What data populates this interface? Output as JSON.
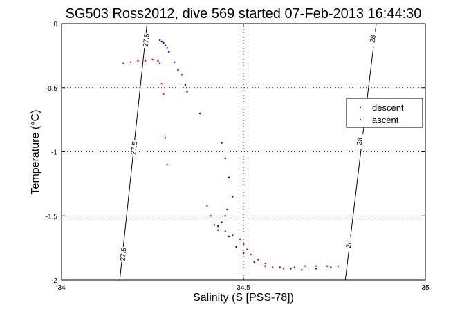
{
  "chart_data": {
    "type": "scatter",
    "title": "SG503 Ross2012, dive 569 started 07-Feb-2013 16:44:30",
    "xlabel": "Salinity (S [PSS-78])",
    "ylabel": "Temperature (°C)",
    "xlim": [
      34,
      35
    ],
    "ylim": [
      -2,
      0
    ],
    "xticks": [
      "34",
      "34.5",
      "35"
    ],
    "yticks": [
      "0",
      "-0.5",
      "-1",
      "-1.5",
      "-2"
    ],
    "grid": true,
    "legend_position": "right",
    "series": [
      {
        "name": "descent",
        "color": "#0000ff",
        "points": [
          [
            34.27,
            -0.13
          ],
          [
            34.275,
            -0.14
          ],
          [
            34.28,
            -0.15
          ],
          [
            34.285,
            -0.17
          ],
          [
            34.29,
            -0.19
          ],
          [
            34.295,
            -0.22
          ],
          [
            34.31,
            -0.3
          ],
          [
            34.32,
            -0.36
          ],
          [
            34.33,
            -0.4
          ],
          [
            34.34,
            -0.48
          ],
          [
            34.345,
            -0.53
          ],
          [
            34.38,
            -0.7
          ],
          [
            34.44,
            -0.93
          ],
          [
            34.45,
            -1.05
          ],
          [
            34.46,
            -1.2
          ],
          [
            34.47,
            -1.35
          ],
          [
            34.455,
            -1.45
          ],
          [
            34.45,
            -1.5
          ],
          [
            34.44,
            -1.55
          ],
          [
            34.43,
            -1.58
          ],
          [
            34.46,
            -1.66
          ],
          [
            34.48,
            -1.74
          ],
          [
            34.5,
            -1.79
          ],
          [
            34.53,
            -1.86
          ],
          [
            34.56,
            -1.89
          ],
          [
            34.6,
            -1.9
          ],
          [
            34.63,
            -1.91
          ],
          [
            34.66,
            -1.92
          ],
          [
            34.7,
            -1.91
          ],
          [
            34.74,
            -1.9
          ]
        ]
      },
      {
        "name": "ascent",
        "color": "#ff0000",
        "points": [
          [
            34.17,
            -0.31
          ],
          [
            34.19,
            -0.3
          ],
          [
            34.21,
            -0.29
          ],
          [
            34.23,
            -0.29
          ],
          [
            34.25,
            -0.28
          ],
          [
            34.265,
            -0.29
          ],
          [
            34.27,
            -0.31
          ],
          [
            34.275,
            -0.47
          ],
          [
            34.28,
            -0.55
          ],
          [
            34.285,
            -0.89
          ],
          [
            34.29,
            -1.1
          ],
          [
            34.4,
            -1.42
          ],
          [
            34.41,
            -1.5
          ],
          [
            34.42,
            -1.57
          ],
          [
            34.43,
            -1.61
          ],
          [
            34.45,
            -1.62
          ],
          [
            34.47,
            -1.65
          ],
          [
            34.49,
            -1.68
          ],
          [
            34.5,
            -1.72
          ],
          [
            34.51,
            -1.76
          ],
          [
            34.52,
            -1.8
          ],
          [
            34.54,
            -1.84
          ],
          [
            34.56,
            -1.87
          ],
          [
            34.58,
            -1.9
          ],
          [
            34.61,
            -1.91
          ],
          [
            34.64,
            -1.9
          ],
          [
            34.67,
            -1.89
          ],
          [
            34.7,
            -1.89
          ],
          [
            34.73,
            -1.89
          ],
          [
            34.76,
            -1.89
          ]
        ]
      }
    ],
    "isopycnals": [
      {
        "label": "27.5",
        "line": [
          [
            34.16,
            -2.0
          ],
          [
            34.235,
            0.0
          ]
        ],
        "label_points": [
          [
            34.17,
            -1.8
          ],
          [
            34.2,
            -0.97
          ],
          [
            34.233,
            -0.13
          ]
        ]
      },
      {
        "label": "28",
        "line": [
          [
            34.78,
            -2.0
          ],
          [
            34.865,
            0.0
          ]
        ],
        "label_points": [
          [
            34.79,
            -1.72
          ],
          [
            34.82,
            -0.92
          ],
          [
            34.856,
            -0.12
          ]
        ]
      }
    ]
  }
}
